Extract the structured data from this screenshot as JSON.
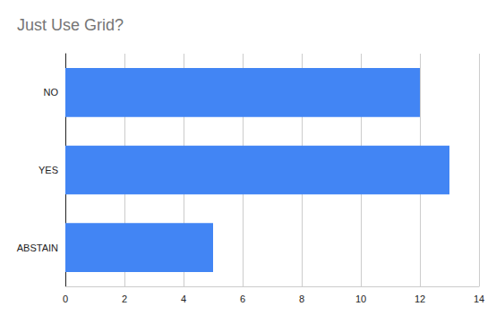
{
  "chart_data": {
    "type": "bar",
    "title": "Just Use Grid?",
    "categories": [
      "NO",
      "YES",
      "ABSTAIN"
    ],
    "values": [
      12,
      13,
      5
    ],
    "color": "#4285f4",
    "orientation": "horizontal",
    "xlim": [
      0,
      14
    ],
    "xticks": [
      0,
      2,
      4,
      6,
      8,
      10,
      12,
      14
    ],
    "grid": true
  }
}
